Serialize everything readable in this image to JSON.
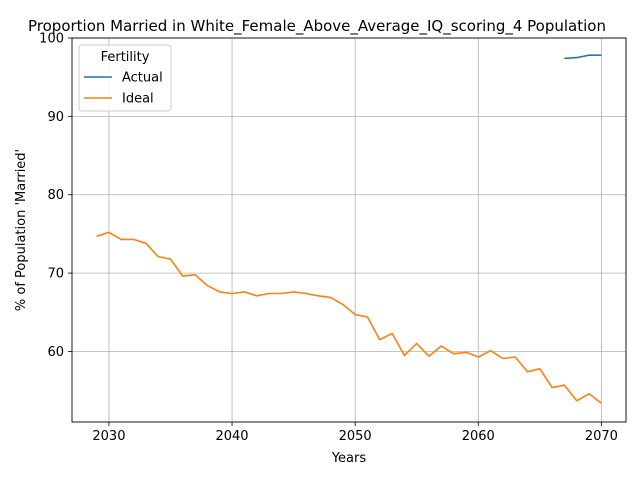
{
  "chart_data": {
    "type": "line",
    "title": "Proportion Married in White_Female_Above_Average_IQ_scoring_4 Population",
    "xlabel": "Years",
    "ylabel": "% of Population 'Married'",
    "xlim": [
      2027,
      2072
    ],
    "ylim": [
      51,
      100
    ],
    "xticks": [
      2030,
      2040,
      2050,
      2060,
      2070
    ],
    "yticks": [
      60,
      70,
      80,
      90,
      100
    ],
    "grid": true,
    "legend": {
      "title": "Fertility",
      "placement": "top-left"
    },
    "series": [
      {
        "name": "Actual",
        "color": "#1f77b4",
        "x": [
          2067,
          2068,
          2069,
          2070
        ],
        "values": [
          97.4,
          97.5,
          97.8,
          97.8
        ]
      },
      {
        "name": "Ideal",
        "color": "#ff7f0e",
        "x": [
          2029,
          2030,
          2031,
          2032,
          2033,
          2034,
          2035,
          2036,
          2037,
          2038,
          2039,
          2040,
          2041,
          2042,
          2043,
          2044,
          2045,
          2046,
          2047,
          2048,
          2049,
          2050,
          2051,
          2052,
          2053,
          2054,
          2055,
          2056,
          2057,
          2058,
          2059,
          2060,
          2061,
          2062,
          2063,
          2064,
          2065,
          2066,
          2067,
          2068,
          2069,
          2070
        ],
        "values": [
          74.7,
          75.2,
          74.3,
          74.3,
          73.8,
          72.1,
          71.8,
          69.6,
          69.8,
          68.4,
          67.6,
          67.4,
          67.6,
          67.1,
          67.4,
          67.4,
          67.6,
          67.4,
          67.1,
          66.9,
          66.0,
          64.7,
          64.4,
          61.5,
          62.3,
          59.5,
          61.0,
          59.4,
          60.7,
          59.7,
          59.9,
          59.3,
          60.1,
          59.1,
          59.3,
          57.4,
          57.8,
          55.4,
          55.7,
          53.7,
          54.6,
          53.4
        ]
      }
    ]
  }
}
